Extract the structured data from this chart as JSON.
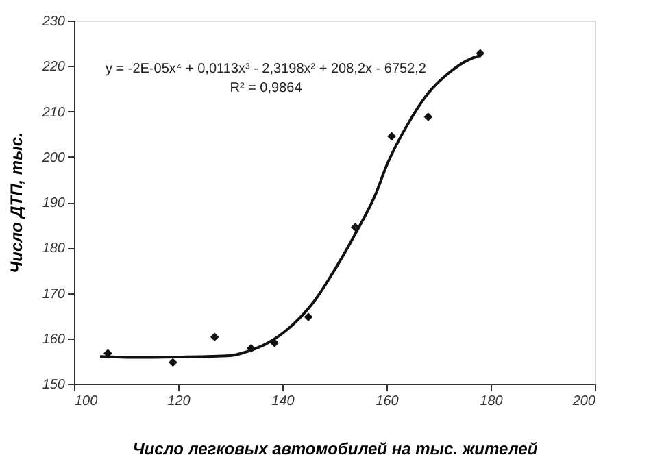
{
  "chart_data": {
    "type": "scatter",
    "xlabel": "Число легковых автомобилей на тыс. жителей",
    "ylabel": "Число ДТП, тыс.",
    "xlim": [
      100,
      200
    ],
    "xticks": [
      100,
      120,
      140,
      160,
      180,
      200
    ],
    "ylim": [
      150,
      230
    ],
    "yticks": [
      150,
      160,
      170,
      180,
      190,
      200,
      210,
      220,
      230
    ],
    "grid": false,
    "marker": "diamond",
    "series": [
      {
        "color": "#111111",
        "x": [
          106.5,
          119,
          127,
          134,
          138.5,
          145,
          154,
          161,
          168,
          178
        ],
        "values": [
          156.7,
          154.7,
          160.3,
          157.8,
          159,
          164.7,
          184.5,
          204.5,
          208.8,
          222.8
        ]
      },
      {
        "type": "line",
        "color": "#111111",
        "marker": "none",
        "x": [
          105,
          112,
          120,
          130,
          133,
          138,
          142,
          146,
          150,
          154,
          158,
          160,
          164,
          168,
          172,
          176,
          178
        ],
        "values": [
          156,
          155.8,
          155.9,
          156.2,
          157,
          159.5,
          163,
          168,
          175,
          183,
          192,
          198,
          207,
          214,
          218.5,
          221.5,
          222.3
        ]
      }
    ],
    "annotations": [
      "y = -2E-05x⁴ + 0,0113x³ - 2,3198x² + 208,2x - 6752,2",
      "R² = 0,9864"
    ]
  }
}
